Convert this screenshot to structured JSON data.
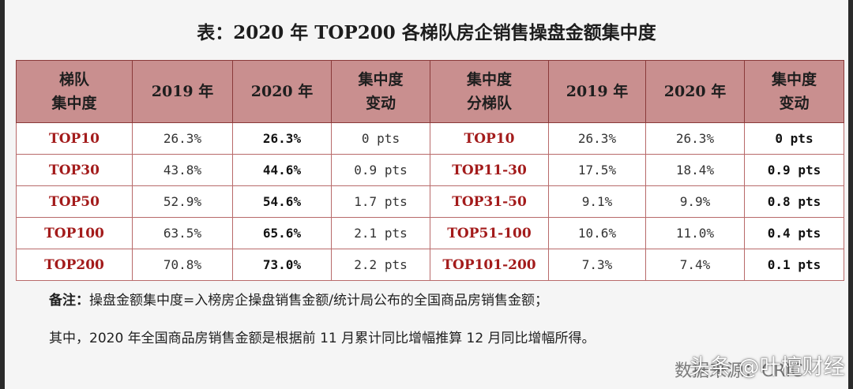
{
  "title": "表：2020 年 TOP200 各梯队房企销售操盘金额集中度",
  "headers": {
    "tier_line1": "梯队",
    "tier_line2": "集中度",
    "y2019": "2019 年",
    "y2020": "2020 年",
    "change_line1": "集中度",
    "change_line2": "变动",
    "subtier_line1": "集中度",
    "subtier_line2": "分梯队",
    "y2019b": "2019 年",
    "y2020b": "2020 年",
    "change2_line1": "集中度",
    "change2_line2": "变动"
  },
  "rows": [
    {
      "tier": "TOP10",
      "v2019": "26.3%",
      "v2020": "26.3%",
      "change": "0 pts",
      "subtier": "TOP10",
      "s2019": "26.3%",
      "s2020": "26.3%",
      "schange": "0 pts"
    },
    {
      "tier": "TOP30",
      "v2019": "43.8%",
      "v2020": "44.6%",
      "change": "0.9 pts",
      "subtier": "TOP11-30",
      "s2019": "17.5%",
      "s2020": "18.4%",
      "schange": "0.9 pts"
    },
    {
      "tier": "TOP50",
      "v2019": "52.9%",
      "v2020": "54.6%",
      "change": "1.7 pts",
      "subtier": "TOP31-50",
      "s2019": "9.1%",
      "s2020": "9.9%",
      "schange": "0.8 pts"
    },
    {
      "tier": "TOP100",
      "v2019": "63.5%",
      "v2020": "65.6%",
      "change": "2.1 pts",
      "subtier": "TOP51-100",
      "s2019": "10.6%",
      "s2020": "11.0%",
      "schange": "0.4 pts"
    },
    {
      "tier": "TOP200",
      "v2019": "70.8%",
      "v2020": "73.0%",
      "change": "2.2 pts",
      "subtier": "TOP101-200",
      "s2019": "7.3%",
      "s2020": "7.4%",
      "schange": "0.1 pts"
    }
  ],
  "note": {
    "label": "备注：",
    "line1": "操盘金额集中度=入榜房企操盘销售金额/统计局公布的全国商品房销售金额；",
    "line2": "其中，2020 年全国商品房销售金额是根据前 11 月累计同比增幅推算 12 月同比增幅所得。"
  },
  "source_fragment": "数据来源：CRIC",
  "watermark": "头条 @叶檀财经",
  "colors": {
    "header_bg": "#c98f8f",
    "tier_text": "#a31b1b",
    "border": "#b86a6a"
  }
}
